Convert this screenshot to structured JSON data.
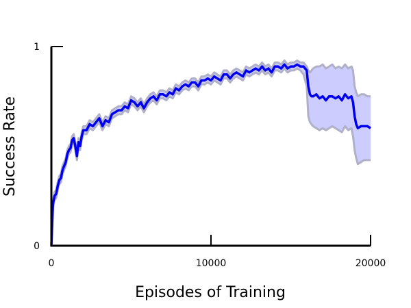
{
  "chart_data": {
    "type": "line",
    "title": "",
    "xlabel": "Episodes of Training",
    "ylabel": "Success Rate",
    "xlim": [
      0,
      20000
    ],
    "ylim": [
      0,
      1
    ],
    "x_ticks": [
      {
        "value": 0,
        "label": "0"
      },
      {
        "value": 10000,
        "label": "10000"
      },
      {
        "value": 20000,
        "label": "20000"
      }
    ],
    "y_ticks": [
      {
        "value": 0,
        "label": "0"
      },
      {
        "value": 1,
        "label": "1"
      }
    ],
    "grid": false,
    "legend": "none",
    "colors": {
      "line": "#0000ee",
      "band_fill": "#ccccff",
      "band_edge": "#b0b0c8",
      "axis": "#000000"
    },
    "series": [
      {
        "x": [
          0,
          100,
          200,
          300,
          400,
          500,
          600,
          700,
          800,
          900,
          1000,
          1100,
          1200,
          1300,
          1400,
          1500,
          1600,
          1700,
          1800,
          1900,
          2000,
          2200,
          2400,
          2600,
          2800,
          3000,
          3200,
          3400,
          3600,
          3800,
          4000,
          4200,
          4400,
          4600,
          4800,
          5000,
          5200,
          5400,
          5600,
          5800,
          6000,
          6200,
          6400,
          6600,
          6800,
          7000,
          7200,
          7400,
          7600,
          7800,
          8000,
          8200,
          8400,
          8600,
          8800,
          9000,
          9200,
          9400,
          9600,
          9800,
          10000,
          10200,
          10400,
          10600,
          10800,
          11000,
          11200,
          11400,
          11600,
          11800,
          12000,
          12200,
          12400,
          12600,
          12800,
          13000,
          13200,
          13400,
          13600,
          13800,
          14000,
          14200,
          14400,
          14600,
          14800,
          15000,
          15200,
          15400,
          15600,
          15800,
          16000,
          16100,
          16200,
          16300,
          16400,
          16600,
          16800,
          17000,
          17200,
          17400,
          17600,
          17800,
          18000,
          18200,
          18400,
          18600,
          18800,
          18900,
          19000,
          19100,
          19200,
          19400,
          19600,
          19800,
          20000
        ],
        "values": [
          0.0,
          0.21,
          0.25,
          0.26,
          0.3,
          0.33,
          0.34,
          0.38,
          0.4,
          0.42,
          0.46,
          0.48,
          0.49,
          0.53,
          0.54,
          0.5,
          0.45,
          0.52,
          0.5,
          0.55,
          0.58,
          0.58,
          0.61,
          0.6,
          0.62,
          0.64,
          0.6,
          0.63,
          0.62,
          0.66,
          0.67,
          0.68,
          0.68,
          0.7,
          0.69,
          0.73,
          0.72,
          0.7,
          0.72,
          0.69,
          0.72,
          0.74,
          0.75,
          0.73,
          0.76,
          0.76,
          0.75,
          0.77,
          0.76,
          0.79,
          0.78,
          0.8,
          0.81,
          0.8,
          0.82,
          0.82,
          0.8,
          0.83,
          0.83,
          0.84,
          0.83,
          0.85,
          0.84,
          0.83,
          0.86,
          0.86,
          0.84,
          0.86,
          0.87,
          0.86,
          0.85,
          0.88,
          0.87,
          0.88,
          0.89,
          0.88,
          0.9,
          0.88,
          0.89,
          0.87,
          0.9,
          0.9,
          0.89,
          0.91,
          0.89,
          0.9,
          0.9,
          0.91,
          0.9,
          0.9,
          0.88,
          0.8,
          0.76,
          0.75,
          0.75,
          0.76,
          0.74,
          0.75,
          0.73,
          0.75,
          0.75,
          0.74,
          0.75,
          0.73,
          0.76,
          0.74,
          0.75,
          0.72,
          0.65,
          0.61,
          0.59,
          0.6,
          0.6,
          0.6,
          0.59
        ],
        "lower": [
          0.0,
          0.19,
          0.23,
          0.24,
          0.28,
          0.31,
          0.32,
          0.36,
          0.38,
          0.4,
          0.44,
          0.46,
          0.47,
          0.51,
          0.52,
          0.48,
          0.43,
          0.5,
          0.48,
          0.53,
          0.56,
          0.56,
          0.59,
          0.58,
          0.6,
          0.62,
          0.58,
          0.61,
          0.6,
          0.64,
          0.65,
          0.66,
          0.66,
          0.68,
          0.67,
          0.71,
          0.7,
          0.68,
          0.7,
          0.67,
          0.7,
          0.72,
          0.73,
          0.71,
          0.74,
          0.74,
          0.73,
          0.75,
          0.74,
          0.77,
          0.76,
          0.78,
          0.79,
          0.78,
          0.8,
          0.8,
          0.78,
          0.81,
          0.81,
          0.82,
          0.81,
          0.83,
          0.82,
          0.81,
          0.84,
          0.84,
          0.82,
          0.84,
          0.85,
          0.84,
          0.83,
          0.86,
          0.85,
          0.86,
          0.87,
          0.86,
          0.88,
          0.86,
          0.87,
          0.85,
          0.88,
          0.88,
          0.87,
          0.89,
          0.87,
          0.88,
          0.88,
          0.89,
          0.88,
          0.86,
          0.8,
          0.65,
          0.62,
          0.61,
          0.6,
          0.59,
          0.58,
          0.59,
          0.58,
          0.59,
          0.6,
          0.59,
          0.58,
          0.57,
          0.6,
          0.58,
          0.59,
          0.55,
          0.48,
          0.44,
          0.41,
          0.42,
          0.43,
          0.43,
          0.43
        ],
        "upper": [
          0.0,
          0.23,
          0.27,
          0.28,
          0.32,
          0.35,
          0.36,
          0.4,
          0.42,
          0.44,
          0.48,
          0.5,
          0.51,
          0.55,
          0.56,
          0.52,
          0.47,
          0.54,
          0.52,
          0.57,
          0.6,
          0.6,
          0.63,
          0.62,
          0.64,
          0.66,
          0.62,
          0.65,
          0.64,
          0.68,
          0.69,
          0.7,
          0.7,
          0.72,
          0.71,
          0.75,
          0.74,
          0.72,
          0.74,
          0.71,
          0.74,
          0.76,
          0.77,
          0.75,
          0.78,
          0.78,
          0.77,
          0.79,
          0.78,
          0.81,
          0.8,
          0.82,
          0.83,
          0.82,
          0.84,
          0.84,
          0.82,
          0.85,
          0.85,
          0.86,
          0.85,
          0.87,
          0.86,
          0.85,
          0.88,
          0.88,
          0.86,
          0.88,
          0.89,
          0.88,
          0.87,
          0.9,
          0.89,
          0.9,
          0.91,
          0.9,
          0.92,
          0.9,
          0.91,
          0.89,
          0.92,
          0.92,
          0.91,
          0.93,
          0.91,
          0.92,
          0.92,
          0.93,
          0.92,
          0.92,
          0.9,
          0.88,
          0.87,
          0.88,
          0.89,
          0.9,
          0.9,
          0.91,
          0.89,
          0.9,
          0.91,
          0.89,
          0.9,
          0.89,
          0.91,
          0.89,
          0.9,
          0.88,
          0.8,
          0.77,
          0.75,
          0.76,
          0.76,
          0.75,
          0.75
        ]
      }
    ]
  }
}
